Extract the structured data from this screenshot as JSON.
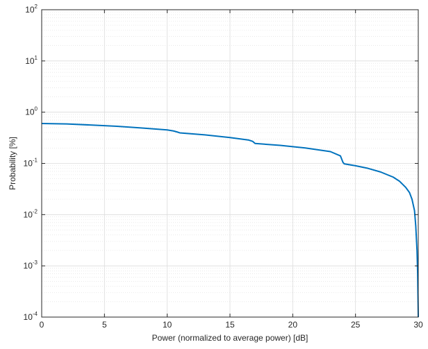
{
  "chart_data": {
    "type": "line",
    "title": "",
    "xlabel": "Power (normalized to average power) [dB]",
    "ylabel": "Probability [%]",
    "xlim": [
      0,
      30
    ],
    "ylim": [
      0.0001,
      100
    ],
    "yscale": "log",
    "grid": true,
    "minor_grid": true,
    "x_ticks": [
      0,
      5,
      10,
      15,
      20,
      25,
      30
    ],
    "x_tick_labels": [
      "0",
      "5",
      "10",
      "15",
      "20",
      "25",
      "30"
    ],
    "y_ticks": [
      0.0001,
      0.001,
      0.01,
      0.1,
      1,
      10,
      100
    ],
    "y_tick_labels": [
      {
        "base": "10",
        "exp": "-4"
      },
      {
        "base": "10",
        "exp": "-3"
      },
      {
        "base": "10",
        "exp": "-2"
      },
      {
        "base": "10",
        "exp": "-1"
      },
      {
        "base": "10",
        "exp": "0"
      },
      {
        "base": "10",
        "exp": "1"
      },
      {
        "base": "10",
        "exp": "2"
      }
    ],
    "line_color": "#0072BD",
    "series": [
      {
        "x": [
          0,
          2,
          4,
          6,
          8,
          10,
          10.5,
          10.8,
          11,
          13,
          15,
          16.5,
          16.8,
          17,
          19,
          21,
          23,
          23.8,
          24,
          24.1,
          25,
          26,
          27,
          28,
          28.5,
          29,
          29.3,
          29.5,
          29.7,
          29.8,
          29.9,
          29.95,
          30
        ],
        "y": [
          0.6,
          0.59,
          0.56,
          0.53,
          0.49,
          0.45,
          0.43,
          0.41,
          0.395,
          0.36,
          0.32,
          0.285,
          0.27,
          0.245,
          0.225,
          0.2,
          0.17,
          0.14,
          0.105,
          0.098,
          0.09,
          0.08,
          0.068,
          0.054,
          0.045,
          0.034,
          0.027,
          0.02,
          0.012,
          0.006,
          0.002,
          0.0007,
          0.0001
        ]
      }
    ]
  }
}
